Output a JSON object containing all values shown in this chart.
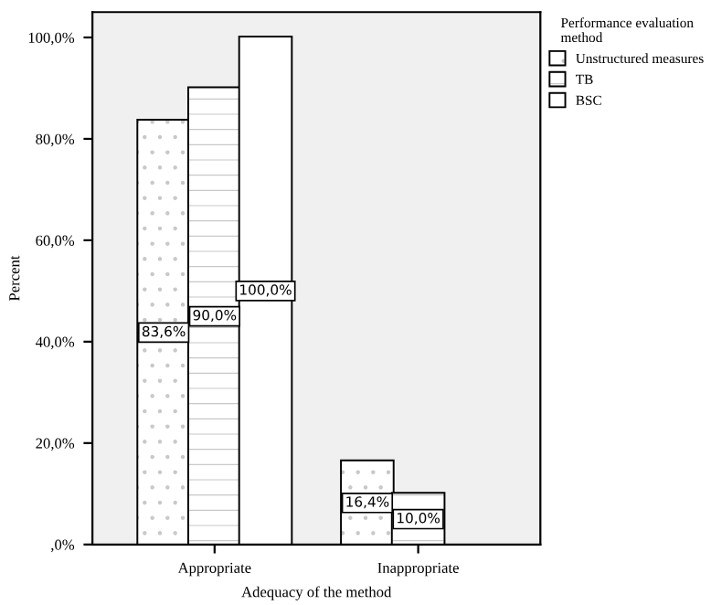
{
  "chart_data": {
    "type": "bar",
    "xlabel": "Adequacy of the method",
    "ylabel": "Percent",
    "legend_title": "Performance evaluation\nmethod",
    "legend": "right",
    "categories": [
      "Appropriate",
      "Inappropriate"
    ],
    "series": [
      {
        "name": "Unstructured measures",
        "color": "#ffffff",
        "values": [
          83.6,
          16.4
        ],
        "value_labels": [
          "83,6%",
          "16,4%"
        ]
      },
      {
        "name": "TB",
        "color": "#ffffff",
        "values": [
          90.0,
          10.0
        ],
        "value_labels": [
          "90,0%",
          "10,0%"
        ]
      },
      {
        "name": "BSC",
        "color": "#ffffff",
        "values": [
          100.0,
          0
        ],
        "value_labels": [
          "100,0%",
          null
        ]
      }
    ],
    "ylim": [
      0,
      105
    ],
    "yticks": [
      {
        "value": 0,
        "label": ",0%"
      },
      {
        "value": 20,
        "label": "20,0%"
      },
      {
        "value": 40,
        "label": "40,0%"
      },
      {
        "value": 60,
        "label": "60,0%"
      },
      {
        "value": 80,
        "label": "80,0%"
      },
      {
        "value": 100,
        "label": "100,0%"
      }
    ],
    "grid": false
  }
}
